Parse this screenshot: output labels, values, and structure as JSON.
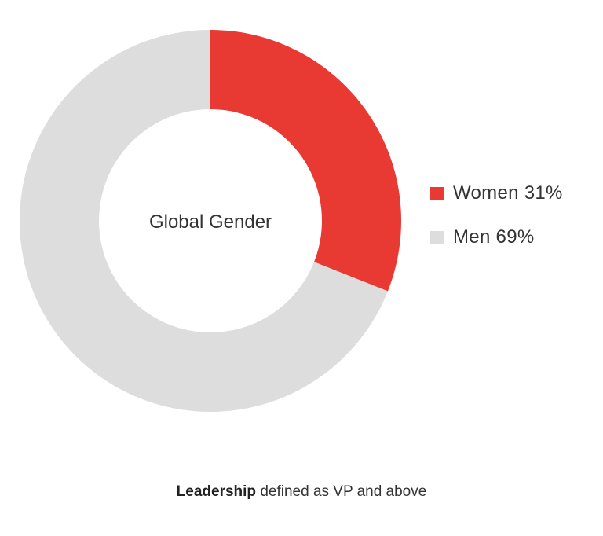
{
  "chart_data": {
    "type": "pie",
    "donut": true,
    "center_label": "Global Gender",
    "slices": [
      {
        "label": "Women",
        "value": 31,
        "color": "#e83a32"
      },
      {
        "label": "Men",
        "value": 69,
        "color": "#dedddd"
      }
    ],
    "legend": [
      {
        "text": "Women 31%",
        "color": "#e83a32"
      },
      {
        "text": "Men 69%",
        "color": "#dedddd"
      }
    ],
    "legend_position": "right"
  },
  "footnote": {
    "bold": "Leadership",
    "rest": " defined as VP and above"
  }
}
